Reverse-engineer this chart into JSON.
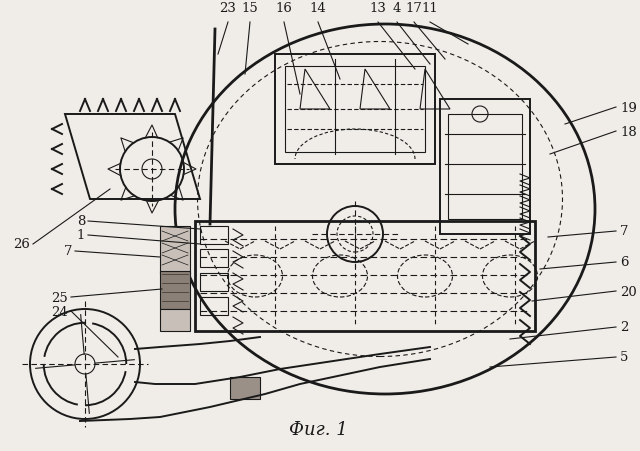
{
  "title": "Фиг. 1",
  "bg_color": "#f0ede8",
  "line_color": "#1a1a1a",
  "lw_main": 1.4,
  "lw_thin": 0.8,
  "lw_thick": 2.0,
  "top_labels": [
    [
      "23",
      228,
      14
    ],
    [
      "15",
      248,
      14
    ],
    [
      "16",
      284,
      14
    ],
    [
      "14",
      318,
      14
    ],
    [
      "13",
      376,
      14
    ],
    [
      "4",
      398,
      14
    ],
    [
      "17",
      414,
      14
    ],
    [
      "11",
      430,
      14
    ]
  ],
  "right_labels": [
    [
      "19",
      618,
      105
    ],
    [
      "18",
      618,
      128
    ],
    [
      "7",
      618,
      228
    ],
    [
      "6",
      618,
      262
    ],
    [
      "20",
      618,
      290
    ],
    [
      "2",
      618,
      328
    ],
    [
      "5",
      618,
      358
    ]
  ],
  "left_labels": [
    [
      "26",
      30,
      240
    ],
    [
      "8",
      85,
      222
    ],
    [
      "1",
      85,
      236
    ],
    [
      "7",
      72,
      252
    ],
    [
      "25",
      68,
      296
    ],
    [
      "24",
      68,
      310
    ]
  ]
}
